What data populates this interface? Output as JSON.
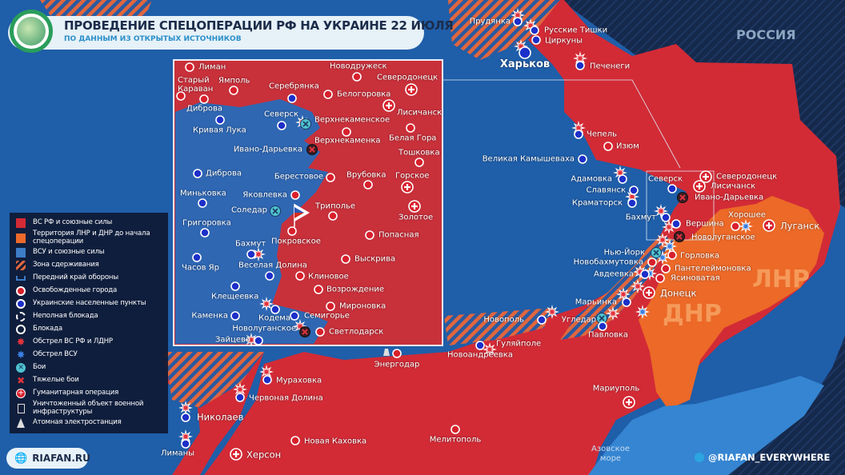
{
  "header": {
    "title": "ПРОВЕДЕНИЕ СПЕЦОПЕРАЦИИ РФ НА УКРАИНЕ 22 ИЮЛЯ",
    "subtitle": "ПО ДАННЫМ ИЗ ОТКРЫТЫХ ИСТОЧНИКОВ"
  },
  "regions": {
    "russia": "РОССИЯ",
    "lnr": "ЛНР",
    "dnr": "ДНР",
    "sea_line1": "Азовское",
    "sea_line2": "море"
  },
  "colors": {
    "russian_forces": "#d42a35",
    "lnr_dnr": "#ee6a2a",
    "ukraine": "#2a63b0",
    "russia": "#14294d",
    "sea": "#3585d2",
    "legend_bg": "#0e1a34"
  },
  "legend": [
    {
      "icon": "red-square",
      "label": "ВС РФ и союзные силы"
    },
    {
      "icon": "orange-square",
      "label": "Территория ЛНР и ДНР до начала спецоперации"
    },
    {
      "icon": "blue-square",
      "label": "ВСУ и союзные силы"
    },
    {
      "icon": "hatch",
      "label": "Зона сдерживания"
    },
    {
      "icon": "front-line",
      "label": "Передний край обороны"
    },
    {
      "icon": "red-dot",
      "label": "Освобожденные города"
    },
    {
      "icon": "blue-dot",
      "label": "Украинские населенные пункты"
    },
    {
      "icon": "dashed-ring",
      "label": "Неполная блокада"
    },
    {
      "icon": "ring",
      "label": "Блокада"
    },
    {
      "icon": "shelling-ru",
      "label": "Обстрел ВС РФ и ЛДНР"
    },
    {
      "icon": "shelling-ua",
      "label": "Обстрел ВСУ"
    },
    {
      "icon": "fight",
      "label": "Бои"
    },
    {
      "icon": "heavy-fight",
      "label": "Тяжелые бои"
    },
    {
      "icon": "humanitarian",
      "label": "Гуманитарная операция"
    },
    {
      "icon": "destroyed",
      "label": "Уничтоженный объект военной инфраструктуры"
    },
    {
      "icon": "nuclear",
      "label": "Атомная электростанция"
    }
  ],
  "places": [
    {
      "name": "Прудянка",
      "marker": "ua"
    },
    {
      "name": "Русские Тишки",
      "marker": "ua"
    },
    {
      "name": "Циркуны",
      "marker": "ua"
    },
    {
      "name": "Харьков",
      "marker": "ua"
    },
    {
      "name": "Печенеги",
      "marker": "ua"
    },
    {
      "name": "Чепель",
      "marker": "ua"
    },
    {
      "name": "Изюм",
      "marker": "liberated"
    },
    {
      "name": "Великая Камышеваха",
      "marker": "ua"
    },
    {
      "name": "Адамовка",
      "marker": "ua"
    },
    {
      "name": "Славянск",
      "marker": "ua"
    },
    {
      "name": "Краматорск",
      "marker": "ua"
    },
    {
      "name": "Бахмут",
      "marker": "ua"
    },
    {
      "name": "Северск",
      "marker": "ua"
    },
    {
      "name": "Северодонецк",
      "marker": "humanitarian"
    },
    {
      "name": "Лисичанск",
      "marker": "humanitarian"
    },
    {
      "name": "Ивано-Дарьевка",
      "marker": "heavy"
    },
    {
      "name": "Вершина",
      "marker": "ua"
    },
    {
      "name": "Хорошее",
      "marker": "liberated"
    },
    {
      "name": "Луганск",
      "marker": "humanitarian"
    },
    {
      "name": "Новолуганское",
      "marker": "heavy"
    },
    {
      "name": "Нью-Йорк",
      "marker": "fight"
    },
    {
      "name": "Горловка",
      "marker": "liberated"
    },
    {
      "name": "Новобахмутовка",
      "marker": "liberated"
    },
    {
      "name": "Пантелеймоновка",
      "marker": "liberated"
    },
    {
      "name": "Авдеевка",
      "marker": "ua"
    },
    {
      "name": "Ясиноватая",
      "marker": "liberated"
    },
    {
      "name": "Донецк",
      "marker": "humanitarian"
    },
    {
      "name": "Марьинка",
      "marker": "ua"
    },
    {
      "name": "Новополь",
      "marker": "ua"
    },
    {
      "name": "Угледар",
      "marker": "fight"
    },
    {
      "name": "Павловка",
      "marker": "ua"
    },
    {
      "name": "Гуляйполе",
      "marker": "ua"
    },
    {
      "name": "Новоандреевка",
      "marker": "none"
    },
    {
      "name": "Энергодар",
      "marker": "liberated"
    },
    {
      "name": "Мураховка",
      "marker": "ua"
    },
    {
      "name": "Червоная Долина",
      "marker": "ua"
    },
    {
      "name": "Николаев",
      "marker": "ua"
    },
    {
      "name": "Лиманы",
      "marker": "ua"
    },
    {
      "name": "Херсон",
      "marker": "humanitarian"
    },
    {
      "name": "Новая Каховка",
      "marker": "liberated"
    },
    {
      "name": "Мелитополь",
      "marker": "liberated"
    },
    {
      "name": "Мариуполь",
      "marker": "humanitarian"
    }
  ],
  "inset_places": [
    {
      "name": "Лиман",
      "marker": "liberated"
    },
    {
      "name": "Старый Караван",
      "marker": "liberated"
    },
    {
      "name": "Ямполь",
      "marker": "liberated"
    },
    {
      "name": "Диброва",
      "marker": "liberated"
    },
    {
      "name": "Серебрянка",
      "marker": "ua"
    },
    {
      "name": "Новодружеск",
      "marker": "liberated"
    },
    {
      "name": "Северодонецк",
      "marker": "humanitarian"
    },
    {
      "name": "Белогоровка",
      "marker": "liberated"
    },
    {
      "name": "Лисичанск",
      "marker": "humanitarian"
    },
    {
      "name": "Северск",
      "marker": "ua"
    },
    {
      "name": "Верхнекаменское",
      "marker": "fight"
    },
    {
      "name": "Кривая Лука",
      "marker": "ua"
    },
    {
      "name": "Верхнекаменка",
      "marker": "liberated"
    },
    {
      "name": "Белая Гора",
      "marker": "liberated"
    },
    {
      "name": "Ивано-Дарьевка",
      "marker": "heavy"
    },
    {
      "name": "Тошковка",
      "marker": "liberated"
    },
    {
      "name": "Диброва",
      "marker": "ua"
    },
    {
      "name": "Берестовое",
      "marker": "liberated"
    },
    {
      "name": "Врубовка",
      "marker": "liberated"
    },
    {
      "name": "Горское",
      "marker": "humanitarian"
    },
    {
      "name": "Миньковка",
      "marker": "ua"
    },
    {
      "name": "Яковлевка",
      "marker": "liberated"
    },
    {
      "name": "Соледар",
      "marker": "fight"
    },
    {
      "name": "Триполье",
      "marker": "liberated"
    },
    {
      "name": "Золотое",
      "marker": "humanitarian"
    },
    {
      "name": "Григоровка",
      "marker": "ua"
    },
    {
      "name": "Покровское",
      "marker": "liberated"
    },
    {
      "name": "Попасная",
      "marker": "liberated"
    },
    {
      "name": "Бахмут",
      "marker": "ua"
    },
    {
      "name": "Часов Яр",
      "marker": "ua"
    },
    {
      "name": "Веселая Долина",
      "marker": "ua"
    },
    {
      "name": "Выскрива",
      "marker": "liberated"
    },
    {
      "name": "Клиновое",
      "marker": "liberated"
    },
    {
      "name": "Возрождение",
      "marker": "liberated"
    },
    {
      "name": "Клещеевка",
      "marker": "ua"
    },
    {
      "name": "Мироновка",
      "marker": "liberated"
    },
    {
      "name": "Каменка",
      "marker": "ua"
    },
    {
      "name": "Кодема",
      "marker": "ua"
    },
    {
      "name": "Семигорье",
      "marker": "ua"
    },
    {
      "name": "Новолуганское",
      "marker": "heavy"
    },
    {
      "name": "Светлодарск",
      "marker": "liberated"
    },
    {
      "name": "Зайцево",
      "marker": "ua"
    }
  ],
  "footer": {
    "site": "RIAFAN.RU",
    "telegram": "@RIAFAN_EVERYWHERE"
  }
}
